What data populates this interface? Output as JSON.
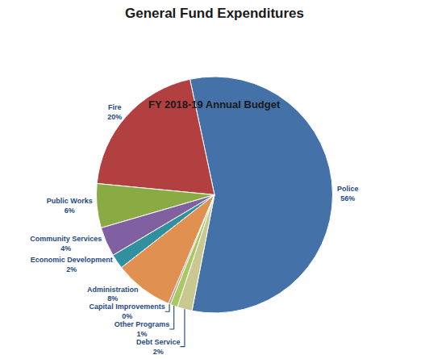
{
  "chart_data": {
    "type": "pie",
    "title": "General Fund Expenditures",
    "subtitle": "FY 2018-19 Annual Budget",
    "categories": [
      "Police",
      "Fire",
      "Public Works",
      "Community Services",
      "Economic Development",
      "Administration",
      "Capital Improvements",
      "Other Programs",
      "Debt Service"
    ],
    "values": [
      56,
      20,
      6,
      4,
      2,
      8,
      0.3,
      1,
      2
    ],
    "value_labels": [
      "56%",
      "20%",
      "6%",
      "4%",
      "2%",
      "8%",
      "0%",
      "1%",
      "2%"
    ],
    "colors": [
      "#4472a8",
      "#b24040",
      "#8aaa44",
      "#8060a0",
      "#3090a0",
      "#e09050",
      "#c09090",
      "#a8c860",
      "#c8c890"
    ]
  }
}
